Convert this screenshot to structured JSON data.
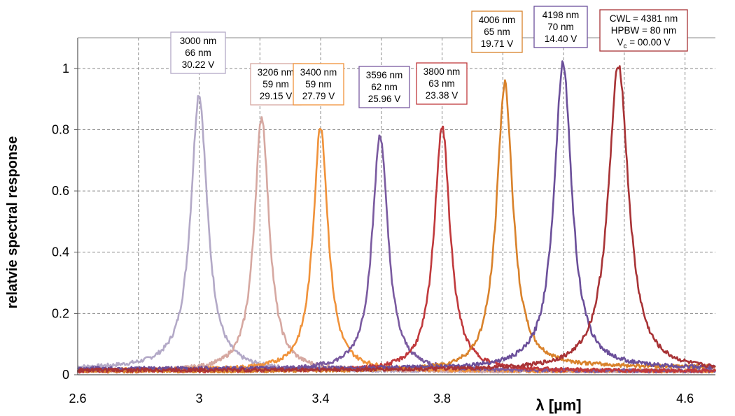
{
  "chart_data": {
    "type": "line",
    "title": "",
    "xlabel": "λ [µm]",
    "ylabel": "relatvie spectral response",
    "xlim": [
      2.6,
      4.7
    ],
    "ylim": [
      0,
      1.1
    ],
    "x_ticks": [
      "2.6",
      "3",
      "3.4",
      "3.8",
      "4.6"
    ],
    "x_tick_values": [
      2.6,
      3.0,
      3.4,
      3.8,
      4.6
    ],
    "y_ticks": [
      "0",
      "0.2",
      "0.4",
      "0.6",
      "0.8",
      "1"
    ],
    "y_tick_values": [
      0,
      0.2,
      0.4,
      0.6,
      0.8,
      1.0
    ],
    "x_grid_values": [
      2.6,
      2.8,
      3.0,
      3.2,
      3.4,
      3.6,
      3.8,
      4.0,
      4.2,
      4.4,
      4.6
    ],
    "grid": true,
    "legend": "none",
    "series": [
      {
        "peak_nm": 3000,
        "peak_value": 0.9,
        "hpbw_nm": 66,
        "voltage": "30.22 V",
        "color": "#b3a9c7",
        "base_left": 0.02,
        "base_right": 0.012,
        "label_lines": [
          "3000 nm",
          "66 nm",
          "30.22 V"
        ]
      },
      {
        "peak_nm": 3206,
        "peak_value": 0.83,
        "hpbw_nm": 59,
        "voltage": "29.15 V",
        "color": "#d6a8a1",
        "base_left": 0.012,
        "base_right": 0.012,
        "label_lines": [
          "3206 nm",
          "59 nm",
          "29.15 V"
        ]
      },
      {
        "peak_nm": 3400,
        "peak_value": 0.8,
        "hpbw_nm": 59,
        "voltage": "27.79 V",
        "color": "#f0923a",
        "base_left": 0.015,
        "base_right": 0.012,
        "label_lines": [
          "3400 nm",
          "59 nm",
          "27.79 V"
        ]
      },
      {
        "peak_nm": 3596,
        "peak_value": 0.77,
        "hpbw_nm": 62,
        "voltage": "25.96 V",
        "color": "#7a5aa0",
        "base_left": 0.015,
        "base_right": 0.012,
        "label_lines": [
          "3596 nm",
          "62 nm",
          "25.96 V"
        ]
      },
      {
        "peak_nm": 3800,
        "peak_value": 0.8,
        "hpbw_nm": 63,
        "voltage": "23.38 V",
        "color": "#c0393c",
        "base_left": 0.012,
        "base_right": 0.012,
        "label_lines": [
          "3800 nm",
          "63 nm",
          "23.38 V"
        ]
      },
      {
        "peak_nm": 4006,
        "peak_value": 0.93,
        "hpbw_nm": 65,
        "voltage": "19.71 V",
        "color": "#d9822b",
        "base_left": 0.012,
        "base_right": 0.025,
        "label_lines": [
          "4006 nm",
          "65 nm",
          "19.71 V"
        ]
      },
      {
        "peak_nm": 4198,
        "peak_value": 1.0,
        "hpbw_nm": 70,
        "voltage": "14.40 V",
        "color": "#6b4f9a",
        "base_left": 0.02,
        "base_right": 0.02,
        "label_lines": [
          "4198 nm",
          "70 nm",
          "14.40 V"
        ]
      },
      {
        "peak_nm": 4381,
        "peak_value": 1.0,
        "hpbw_nm": 80,
        "voltage": "00.00 V",
        "color": "#a83336",
        "base_left": 0.015,
        "base_right": 0.012,
        "label_lines": [
          "CWL = 4381 nm",
          "HPBW = 80 nm",
          "Vc = 00.00 V"
        ]
      }
    ]
  }
}
